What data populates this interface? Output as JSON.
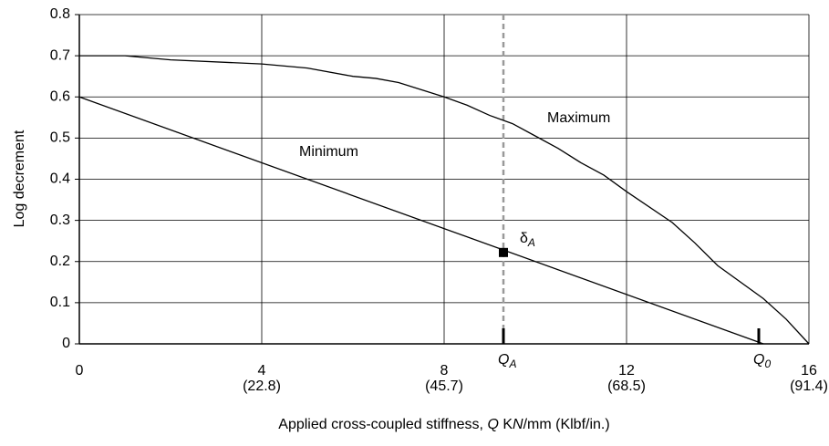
{
  "chart_data": {
    "type": "line",
    "y_label": "Log decrement",
    "x_label": [
      "Applied cross-coupled stiffness, ",
      "Q",
      " K",
      "N",
      "/mm (Klbf/in.)"
    ],
    "xlim": [
      0,
      16
    ],
    "xticks": [
      0,
      4,
      8,
      12,
      16
    ],
    "xtick_sublabels": [
      null,
      "(22.8)",
      "(45.7)",
      "(68.5)",
      "(91.4)"
    ],
    "ylim": [
      0,
      0.8
    ],
    "yticks": [
      0,
      0.1,
      0.2,
      0.3,
      0.4,
      0.5,
      0.6,
      0.7,
      0.8
    ],
    "grid": true,
    "series": [
      {
        "name": "Maximum",
        "color": "#000000",
        "x": [
          0,
          1,
          2,
          4,
          5,
          6,
          6.5,
          7,
          8,
          8.5,
          9,
          9.5,
          10,
          10.5,
          11,
          11.5,
          12,
          13,
          13.5,
          14,
          15,
          15.5,
          16
        ],
        "values": [
          0.7,
          0.7,
          0.69,
          0.68,
          0.67,
          0.65,
          0.645,
          0.635,
          0.6,
          0.58,
          0.555,
          0.535,
          0.505,
          0.475,
          0.44,
          0.41,
          0.37,
          0.295,
          0.245,
          0.19,
          0.11,
          0.06,
          0
        ]
      },
      {
        "name": "Minimum",
        "color": "#000000",
        "x": [
          0,
          15
        ],
        "values": [
          0.6,
          0
        ]
      }
    ],
    "point": {
      "label": "δ",
      "sub": "A",
      "x": 9.3,
      "y": 0.222
    },
    "markers": [
      {
        "label": "Q",
        "sub": "A",
        "x": 9.3
      },
      {
        "label": "Q",
        "sub": "0",
        "x": 14.9
      }
    ]
  }
}
